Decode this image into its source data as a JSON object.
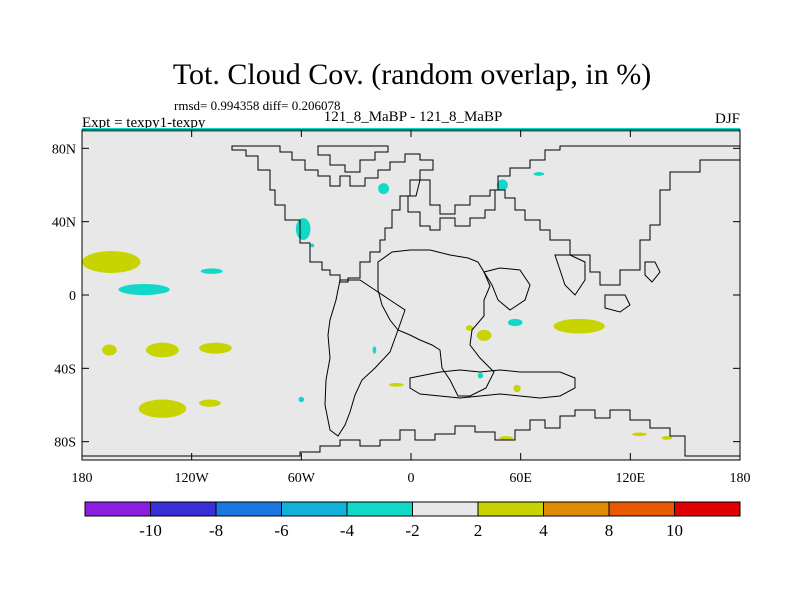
{
  "chart_data": {
    "type": "heatmap",
    "title": "Tot. Cloud Cov. (random overlap, in %)",
    "stats": "rmsd= 0.994358 diff= 0.206078",
    "experiment": "Expt = texpy1-texpy",
    "comparison": "121_8_MaBP - 121_8_MaBP",
    "season": "DJF",
    "x_range": [
      -180,
      180
    ],
    "y_range": [
      -90,
      90
    ],
    "x_ticks": [
      {
        "value": -180,
        "label": "180"
      },
      {
        "value": -120,
        "label": "120W"
      },
      {
        "value": -60,
        "label": "60W"
      },
      {
        "value": 0,
        "label": "0"
      },
      {
        "value": 60,
        "label": "60E"
      },
      {
        "value": 120,
        "label": "120E"
      },
      {
        "value": 180,
        "label": "180"
      }
    ],
    "y_ticks": [
      {
        "value": 80,
        "label": "80N"
      },
      {
        "value": 40,
        "label": "40N"
      },
      {
        "value": 0,
        "label": "0"
      },
      {
        "value": -40,
        "label": "40S"
      },
      {
        "value": -80,
        "label": "80S"
      }
    ],
    "colorbar": {
      "levels": [
        -10,
        -8,
        -6,
        -4,
        -2,
        2,
        4,
        8,
        10
      ],
      "labels": [
        "-10",
        "-8",
        "-6",
        "-4",
        "-2",
        "2",
        "4",
        "8",
        "10"
      ],
      "colors": [
        "#8a1fe0",
        "#3a2fd6",
        "#1a78e0",
        "#12b2d8",
        "#12d8c8",
        "#e8e8e8",
        "#c8d400",
        "#e08c00",
        "#e85a00",
        "#e00000"
      ]
    },
    "anomalies": [
      {
        "lon": -164,
        "lat": 18,
        "rlon": 16,
        "rlat": 6,
        "bin": "2 to 4"
      },
      {
        "lon": -146,
        "lat": 3,
        "rlon": 14,
        "rlat": 3,
        "bin": "-4 to -2"
      },
      {
        "lon": -109,
        "lat": 13,
        "rlon": 6,
        "rlat": 1.5,
        "bin": "-4 to -2"
      },
      {
        "lon": -165,
        "lat": -30,
        "rlon": 4,
        "rlat": 3,
        "bin": "2 to 4"
      },
      {
        "lon": -136,
        "lat": -30,
        "rlon": 9,
        "rlat": 4,
        "bin": "2 to 4"
      },
      {
        "lon": -107,
        "lat": -29,
        "rlon": 9,
        "rlat": 3,
        "bin": "2 to 4"
      },
      {
        "lon": -136,
        "lat": -62,
        "rlon": 13,
        "rlat": 5,
        "bin": "2 to 4"
      },
      {
        "lon": -110,
        "lat": -59,
        "rlon": 6,
        "rlat": 2,
        "bin": "2 to 4"
      },
      {
        "lon": -59,
        "lat": 36,
        "rlon": 4,
        "rlat": 6,
        "bin": "-4 to -2"
      },
      {
        "lon": -54,
        "lat": 27,
        "rlon": 1,
        "rlat": 1,
        "bin": "-4 to -2"
      },
      {
        "lon": -15,
        "lat": 58,
        "rlon": 3,
        "rlat": 3,
        "bin": "-4 to -2"
      },
      {
        "lon": -20,
        "lat": -30,
        "rlon": 1,
        "rlat": 2,
        "bin": "-4 to -2"
      },
      {
        "lon": -60,
        "lat": -57,
        "rlon": 1.5,
        "rlat": 1.5,
        "bin": "-4 to -2"
      },
      {
        "lon": 50,
        "lat": 60,
        "rlon": 3,
        "rlat": 3,
        "bin": "-4 to -2"
      },
      {
        "lon": 70,
        "lat": 66,
        "rlon": 3,
        "rlat": 1,
        "bin": "-4 to -2"
      },
      {
        "lon": 57,
        "lat": -15,
        "rlon": 4,
        "rlat": 2,
        "bin": "-4 to -2"
      },
      {
        "lon": 40,
        "lat": -22,
        "rlon": 4,
        "rlat": 3,
        "bin": "2 to 4"
      },
      {
        "lon": 32,
        "lat": -18,
        "rlon": 2,
        "rlat": 1.5,
        "bin": "2 to 4"
      },
      {
        "lon": 38,
        "lat": -44,
        "rlon": 1.5,
        "rlat": 1.5,
        "bin": "-4 to -2"
      },
      {
        "lon": 58,
        "lat": -51,
        "rlon": 2,
        "rlat": 2,
        "bin": "2 to 4"
      },
      {
        "lon": 92,
        "lat": -17,
        "rlon": 14,
        "rlat": 4,
        "bin": "2 to 4"
      },
      {
        "lon": -8,
        "lat": -49,
        "rlon": 4,
        "rlat": 1,
        "bin": "2 to 4"
      },
      {
        "lon": 52,
        "lat": -78,
        "rlon": 4,
        "rlat": 1,
        "bin": "2 to 4"
      },
      {
        "lon": 125,
        "lat": -76,
        "rlon": 4,
        "rlat": 1,
        "bin": "2 to 4"
      },
      {
        "lon": 140,
        "lat": -78,
        "rlon": 3,
        "rlat": 1,
        "bin": "2 to 4"
      }
    ]
  }
}
